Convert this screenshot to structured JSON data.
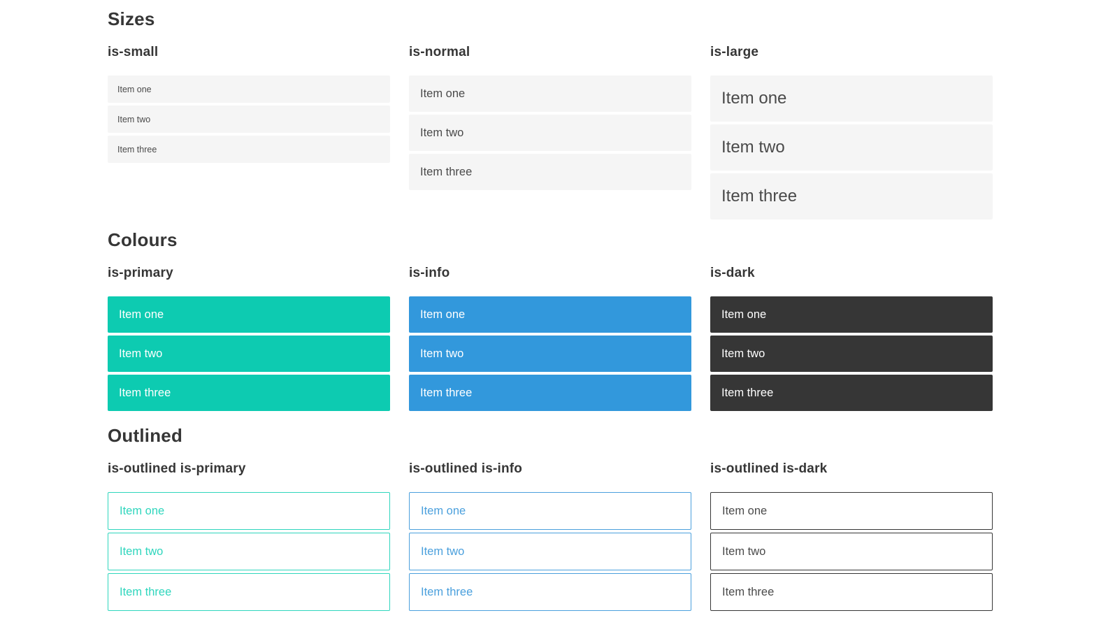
{
  "colors": {
    "heading": "#363636",
    "light_bg": "#f5f5f5",
    "light_text": "#4a4a4a",
    "solid_text": "#ffffff",
    "primary": "#0dcbb1",
    "primary_outline": "#2fd6bd",
    "info": "#3298dc",
    "info_outline": "#4ba0dd",
    "dark": "#363636",
    "dark_outline": "#363636"
  },
  "sections": [
    {
      "title": "Sizes",
      "groups": [
        {
          "label": "is-small",
          "items": [
            "Item one",
            "Item two",
            "Item three"
          ]
        },
        {
          "label": "is-normal",
          "items": [
            "Item one",
            "Item two",
            "Item three"
          ]
        },
        {
          "label": "is-large",
          "items": [
            "Item one",
            "Item two",
            "Item three"
          ]
        }
      ]
    },
    {
      "title": "Colours",
      "groups": [
        {
          "label": "is-primary",
          "items": [
            "Item one",
            "Item two",
            "Item three"
          ]
        },
        {
          "label": "is-info",
          "items": [
            "Item one",
            "Item two",
            "Item three"
          ]
        },
        {
          "label": "is-dark",
          "items": [
            "Item one",
            "Item two",
            "Item three"
          ]
        }
      ]
    },
    {
      "title": "Outlined",
      "groups": [
        {
          "label": "is-outlined is-primary",
          "items": [
            "Item one",
            "Item two",
            "Item three"
          ]
        },
        {
          "label": "is-outlined is-info",
          "items": [
            "Item one",
            "Item two",
            "Item three"
          ]
        },
        {
          "label": "is-outlined is-dark",
          "items": [
            "Item one",
            "Item two",
            "Item three"
          ]
        }
      ]
    }
  ]
}
